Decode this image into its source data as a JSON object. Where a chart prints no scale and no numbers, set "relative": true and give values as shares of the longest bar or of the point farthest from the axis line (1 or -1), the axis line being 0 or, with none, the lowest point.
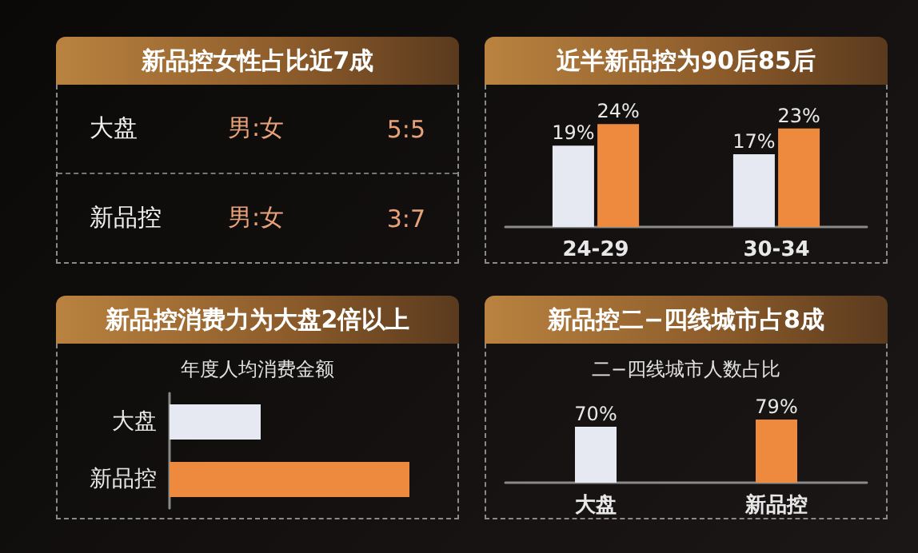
{
  "chart_data": [
    {
      "type": "other",
      "title": "新品控女性占比近7成",
      "annotations": [
        "大盘",
        "男:女",
        "5:5",
        "新品控",
        "男:女",
        "3:7"
      ]
    },
    {
      "type": "bar",
      "title": "近半新品控为90后85后",
      "categories": [
        "24-29",
        "30-34"
      ],
      "series": [
        {
          "color": "#e6e8f2",
          "values": [
            19,
            17
          ],
          "value_labels": [
            "19%",
            "17%"
          ]
        },
        {
          "color": "#ee8a3e",
          "values": [
            24,
            23
          ],
          "value_labels": [
            "24%",
            "23%"
          ]
        }
      ]
    },
    {
      "type": "bar",
      "title": "新品控消费力为大盘2倍以上",
      "subtitle": "年度人均消费金额",
      "orientation": "horizontal",
      "relative": true,
      "categories": [
        "大盘",
        "新品控"
      ],
      "values": [
        0.38,
        1
      ],
      "colors": [
        "#e6e8f2",
        "#ee8a3e"
      ]
    },
    {
      "type": "bar",
      "title": "新品控二−四线城市占8成",
      "subtitle": "二−四线城市人数占比",
      "categories": [
        "大盘",
        "新品控"
      ],
      "values": [
        70,
        79
      ],
      "colors": [
        "#e6e8f2",
        "#ee8a3e"
      ],
      "value_labels": [
        "70%",
        "79%"
      ]
    }
  ]
}
